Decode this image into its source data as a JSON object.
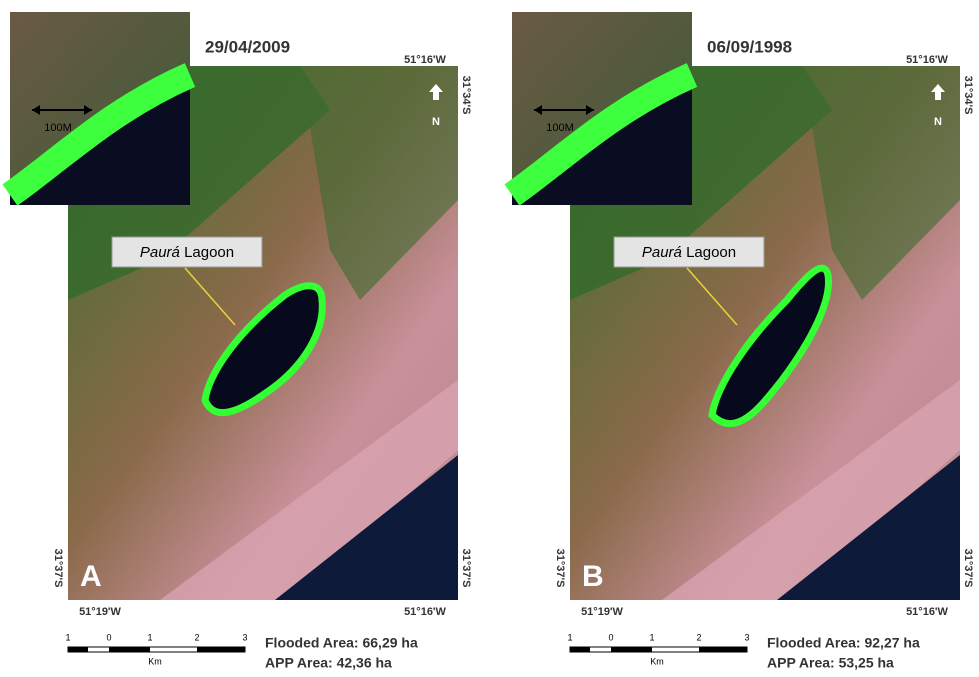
{
  "panels": [
    {
      "letter": "A",
      "date": "29/04/2009",
      "lon_top": "51°16'W",
      "lat_top_right": "31°34'S",
      "lat_bottom_left": "31°37'S",
      "lat_bottom_right": "31°37'S",
      "lon_bottom_left": "51°19'W",
      "lon_bottom_right": "51°16'W",
      "lagoon_name": "Paurá",
      "lagoon_suffix": "Lagoon",
      "inset_scale": "100M",
      "north": "N",
      "scale_ticks": [
        "1",
        "0",
        "1",
        "2",
        "3"
      ],
      "scale_unit": "Km",
      "flooded_area": "Flooded Area: 66,29 ha",
      "app_area": "APP Area: 42,36 ha"
    },
    {
      "letter": "B",
      "date": "06/09/1998",
      "lon_top": "51°16'W",
      "lat_top_right": "31°34'S",
      "lat_bottom_left": "31°37'S",
      "lat_bottom_right": "31°37'S",
      "lon_bottom_left": "51°19'W",
      "lon_bottom_right": "51°16'W",
      "lagoon_name": "Paurá",
      "lagoon_suffix": "Lagoon",
      "inset_scale": "100M",
      "north": "N",
      "scale_ticks": [
        "1",
        "0",
        "1",
        "2",
        "3"
      ],
      "scale_unit": "Km",
      "flooded_area": "Flooded Area: 92,27 ha",
      "app_area": "APP Area: 53,25 ha"
    }
  ]
}
